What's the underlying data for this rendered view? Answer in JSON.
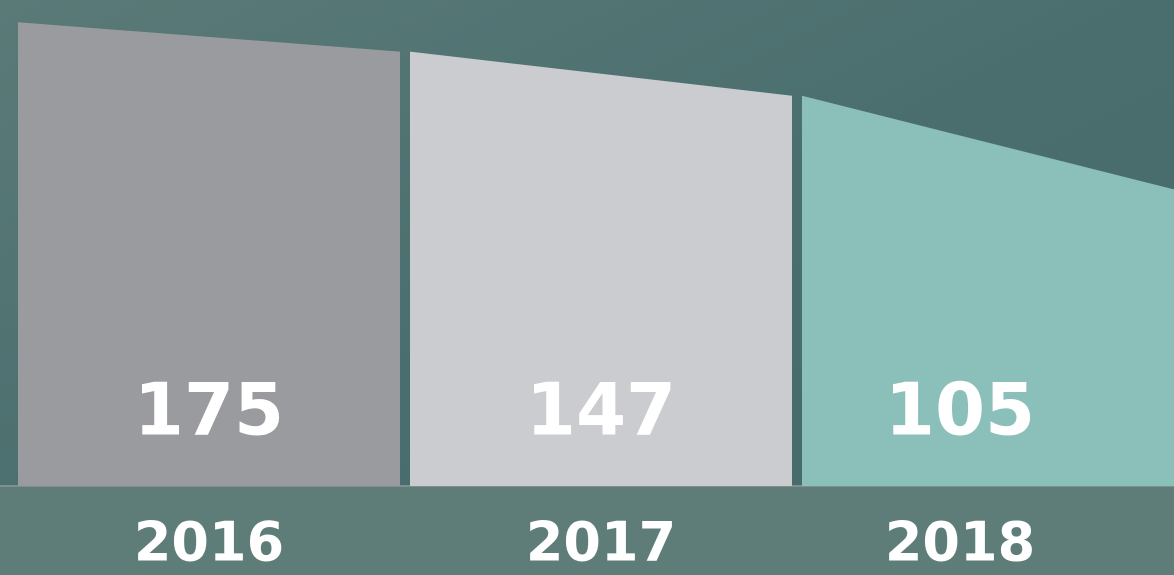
{
  "chart_data": {
    "type": "bar",
    "categories": [
      "2016",
      "2017",
      "2018"
    ],
    "values": [
      175,
      147,
      105
    ],
    "colors": [
      "#9a9b9f",
      "#cbccd0",
      "#8bbfba"
    ]
  }
}
